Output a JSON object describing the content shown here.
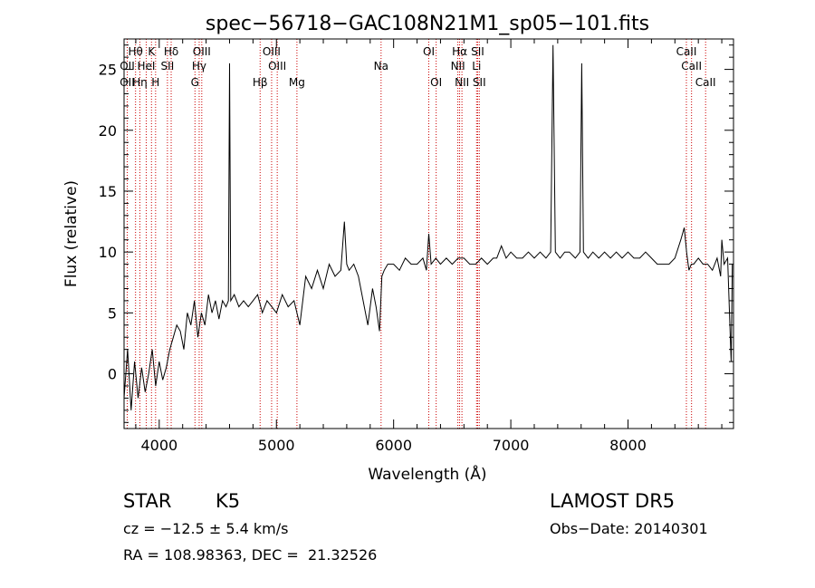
{
  "chart_data": {
    "type": "line",
    "title": "spec−56718−GAC108N21M1_sp05−101.fits",
    "xlabel": "Wavelength (Å)",
    "ylabel": "Flux (relative)",
    "xlim": [
      3700,
      8900
    ],
    "ylim": [
      -4.5,
      27.5
    ],
    "xticks": [
      4000,
      5000,
      6000,
      7000,
      8000
    ],
    "yticks": [
      0,
      5,
      10,
      15,
      20,
      25
    ],
    "line_color": "#000000",
    "marker_color": "#cc0000",
    "series": [
      {
        "x": [
          3700,
          3730,
          3760,
          3790,
          3820,
          3850,
          3880,
          3910,
          3940,
          3970,
          4000,
          4030,
          4060,
          4090,
          4120,
          4150,
          4180,
          4210,
          4240,
          4270,
          4300,
          4330,
          4360,
          4390,
          4420,
          4450,
          4480,
          4510,
          4540,
          4570,
          4590,
          4600,
          4610,
          4640,
          4680,
          4720,
          4760,
          4800,
          4840,
          4880,
          4920,
          4960,
          5000,
          5050,
          5100,
          5150,
          5200,
          5250,
          5300,
          5350,
          5400,
          5450,
          5500,
          5550,
          5580,
          5600,
          5620,
          5660,
          5700,
          5740,
          5780,
          5820,
          5850,
          5880,
          5900,
          5920,
          5950,
          6000,
          6050,
          6100,
          6150,
          6200,
          6250,
          6280,
          6300,
          6320,
          6360,
          6400,
          6450,
          6500,
          6550,
          6600,
          6650,
          6700,
          6750,
          6800,
          6850,
          6880,
          6920,
          6960,
          7000,
          7050,
          7100,
          7150,
          7200,
          7250,
          7300,
          7340,
          7360,
          7380,
          7420,
          7460,
          7500,
          7550,
          7590,
          7605,
          7620,
          7660,
          7700,
          7750,
          7800,
          7850,
          7900,
          7950,
          8000,
          8050,
          8100,
          8150,
          8200,
          8250,
          8300,
          8350,
          8400,
          8450,
          8480,
          8500,
          8520,
          8540,
          8560,
          8600,
          8640,
          8680,
          8720,
          8760,
          8790,
          8800,
          8820,
          8850,
          8880,
          8890
        ],
        "y": [
          -2,
          2,
          -3,
          1,
          -2,
          0.5,
          -1.5,
          0,
          2,
          -1,
          1,
          -0.5,
          0.5,
          2,
          3,
          4,
          3.5,
          2,
          5,
          4,
          6,
          3,
          5,
          4,
          6.5,
          5,
          6,
          4.5,
          6,
          5.5,
          6,
          25.5,
          6,
          6.5,
          5.5,
          6,
          5.5,
          6,
          6.5,
          5,
          6,
          5.5,
          5,
          6.5,
          5.5,
          6,
          4,
          8,
          7,
          8.5,
          7,
          9,
          8,
          8.5,
          12.5,
          9,
          8.5,
          9,
          8,
          6,
          4,
          7,
          5.5,
          3.5,
          8,
          8.5,
          9,
          9,
          8.5,
          9.5,
          9,
          9,
          9.5,
          8.5,
          11.5,
          9,
          9.5,
          9,
          9.5,
          9,
          9.5,
          9.5,
          9,
          9,
          9.5,
          9,
          9.5,
          9.5,
          10.5,
          9.5,
          10,
          9.5,
          9.5,
          10,
          9.5,
          10,
          9.5,
          10,
          27,
          10,
          9.5,
          10,
          10,
          9.5,
          10,
          25.5,
          10,
          9.5,
          10,
          9.5,
          10,
          9.5,
          10,
          9.5,
          10,
          9.5,
          9.5,
          10,
          9.5,
          9,
          9,
          9,
          9.5,
          11,
          12,
          10,
          8.5,
          9,
          9,
          9.5,
          9,
          9,
          8.5,
          9.5,
          8,
          11,
          9,
          9.5,
          1,
          9
        ]
      }
    ],
    "lines": [
      {
        "name": "Hθ",
        "wl": 3798,
        "row": 0
      },
      {
        "name": "OII",
        "wl": 3727,
        "row": 1
      },
      {
        "name": "OII",
        "wl": 3727,
        "row": 2
      },
      {
        "name": "Hη",
        "wl": 3835,
        "row": 2
      },
      {
        "name": "K",
        "wl": 3934,
        "row": 0
      },
      {
        "name": "HeI",
        "wl": 3889,
        "row": 1
      },
      {
        "name": "H",
        "wl": 3969,
        "row": 2
      },
      {
        "name": "Hδ",
        "wl": 4102,
        "row": 0
      },
      {
        "name": "SII",
        "wl": 4070,
        "row": 1
      },
      {
        "name": "OIII",
        "wl": 4363,
        "row": 0
      },
      {
        "name": "Hγ",
        "wl": 4341,
        "row": 1
      },
      {
        "name": "G",
        "wl": 4305,
        "row": 2
      },
      {
        "name": "OIII",
        "wl": 4959,
        "row": 0
      },
      {
        "name": "OIII",
        "wl": 5007,
        "row": 1
      },
      {
        "name": "Hβ",
        "wl": 4861,
        "row": 2
      },
      {
        "name": "Mg",
        "wl": 5175,
        "row": 2
      },
      {
        "name": "Na",
        "wl": 5893,
        "row": 1
      },
      {
        "name": "OI",
        "wl": 6300,
        "row": 0
      },
      {
        "name": "OI",
        "wl": 6363,
        "row": 2
      },
      {
        "name": "Hα",
        "wl": 6563,
        "row": 0
      },
      {
        "name": "NII",
        "wl": 6548,
        "row": 1
      },
      {
        "name": "NII",
        "wl": 6583,
        "row": 2
      },
      {
        "name": "SII",
        "wl": 6717,
        "row": 0
      },
      {
        "name": "Li",
        "wl": 6708,
        "row": 1
      },
      {
        "name": "SII",
        "wl": 6731,
        "row": 2
      },
      {
        "name": "CaII",
        "wl": 8498,
        "row": 0
      },
      {
        "name": "CaII",
        "wl": 8542,
        "row": 1
      },
      {
        "name": "CaII",
        "wl": 8662,
        "row": 2
      }
    ]
  },
  "info": {
    "class": "STAR",
    "subclass": "K5",
    "cz": "cz = −12.5 ± 5.4 km/s",
    "coords": "RA = 108.98363, DEC =  21.32526",
    "survey": "LAMOST DR5",
    "obs_date": "Obs−Date: 20140301"
  }
}
